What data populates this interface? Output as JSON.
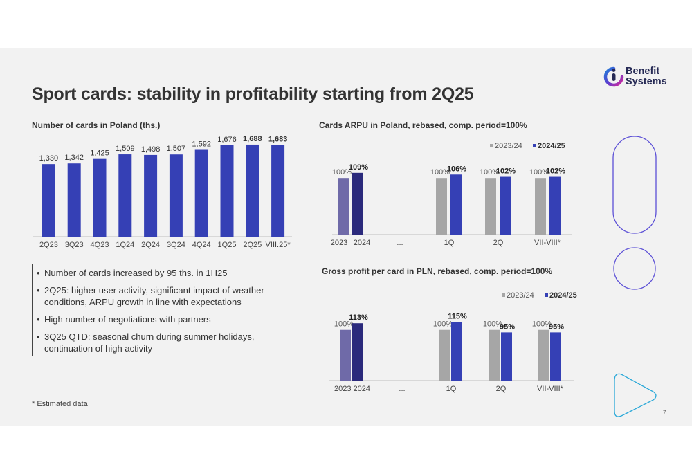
{
  "title": "Sport cards: stability in profitability starting from 2Q25",
  "logo": {
    "line1": "Benefit",
    "line2": "Systems"
  },
  "bullets": [
    "Number of cards increased by 95 ths. in 1H25",
    "2Q25: higher user activity, significant impact of weather conditions, ARPU growth in line with expectations",
    "High number of negotiations with partners",
    "3Q25 QTD: seasonal churn during summer holidays, continuation of high activity"
  ],
  "footnote": "* Estimated data",
  "page_number": "7",
  "colors": {
    "bar_blue": "#3540b5",
    "bar_purple": "#6f6aa8",
    "bar_navy": "#2b2a7c",
    "bar_grey": "#a6a6a6",
    "accent_outline": "#5b4fd6",
    "accent_cyan": "#29a8d8"
  },
  "chart_data": [
    {
      "id": "cards",
      "type": "bar",
      "title": "Number of cards in Poland (ths.)",
      "categories": [
        "2Q23",
        "3Q23",
        "4Q23",
        "1Q24",
        "2Q24",
        "3Q24",
        "4Q24",
        "1Q25",
        "2Q25",
        "VIII.25*"
      ],
      "values": [
        1330,
        1342,
        1425,
        1509,
        1498,
        1507,
        1592,
        1676,
        1688,
        1683
      ],
      "labels": [
        "1,330",
        "1,342",
        "1,425",
        "1,509",
        "1,498",
        "1,507",
        "1,592",
        "1,676",
        "1,688",
        "1,683"
      ],
      "bold_labels": [
        false,
        false,
        false,
        false,
        false,
        false,
        false,
        false,
        true,
        true
      ],
      "ylim": [
        0,
        1700
      ]
    },
    {
      "id": "arpu",
      "type": "bar",
      "title": "Cards ARPU in Poland, rebased, comp. period=100%",
      "categories": [
        "2023",
        "2024",
        "...",
        "1Q",
        "2Q",
        "VII-VIII*"
      ],
      "legend": [
        "2023/24",
        "2024/25"
      ],
      "legend_position": "top-right",
      "groups": [
        {
          "category": "2023 2024",
          "values": [
            100,
            109
          ],
          "labels": [
            "100%",
            "109%"
          ],
          "colors": [
            "bar_purple",
            "bar_navy"
          ]
        },
        {
          "category": "1Q",
          "values": [
            100,
            106
          ],
          "labels": [
            "100%",
            "106%"
          ],
          "colors": [
            "bar_grey",
            "bar_blue"
          ]
        },
        {
          "category": "2Q",
          "values": [
            100,
            102
          ],
          "labels": [
            "100%",
            "102%"
          ],
          "colors": [
            "bar_grey",
            "bar_blue"
          ]
        },
        {
          "category": "VII-VIII*",
          "values": [
            100,
            102
          ],
          "labels": [
            "100%",
            "102%"
          ],
          "colors": [
            "bar_grey",
            "bar_blue"
          ]
        }
      ],
      "ylim": [
        0,
        110
      ]
    },
    {
      "id": "gp",
      "type": "bar",
      "title": "Gross profit per card in PLN, rebased, comp. period=100%",
      "categories": [
        "2023 2024",
        "...",
        "1Q",
        "2Q",
        "VII-VIII*"
      ],
      "legend": [
        "2023/24",
        "2024/25"
      ],
      "legend_position": "top-right",
      "groups": [
        {
          "category": "2023 2024",
          "values": [
            100,
            113
          ],
          "labels": [
            "100%",
            "113%"
          ],
          "colors": [
            "bar_purple",
            "bar_navy"
          ]
        },
        {
          "category": "1Q",
          "values": [
            100,
            115
          ],
          "labels": [
            "100%",
            "115%"
          ],
          "colors": [
            "bar_grey",
            "bar_blue"
          ]
        },
        {
          "category": "2Q",
          "values": [
            100,
            95
          ],
          "labels": [
            "100%",
            "95%"
          ],
          "colors": [
            "bar_grey",
            "bar_blue"
          ]
        },
        {
          "category": "VII-VIII*",
          "values": [
            100,
            95
          ],
          "labels": [
            "100%",
            "95%"
          ],
          "colors": [
            "bar_grey",
            "bar_blue"
          ]
        }
      ],
      "ylim": [
        0,
        116
      ]
    }
  ]
}
